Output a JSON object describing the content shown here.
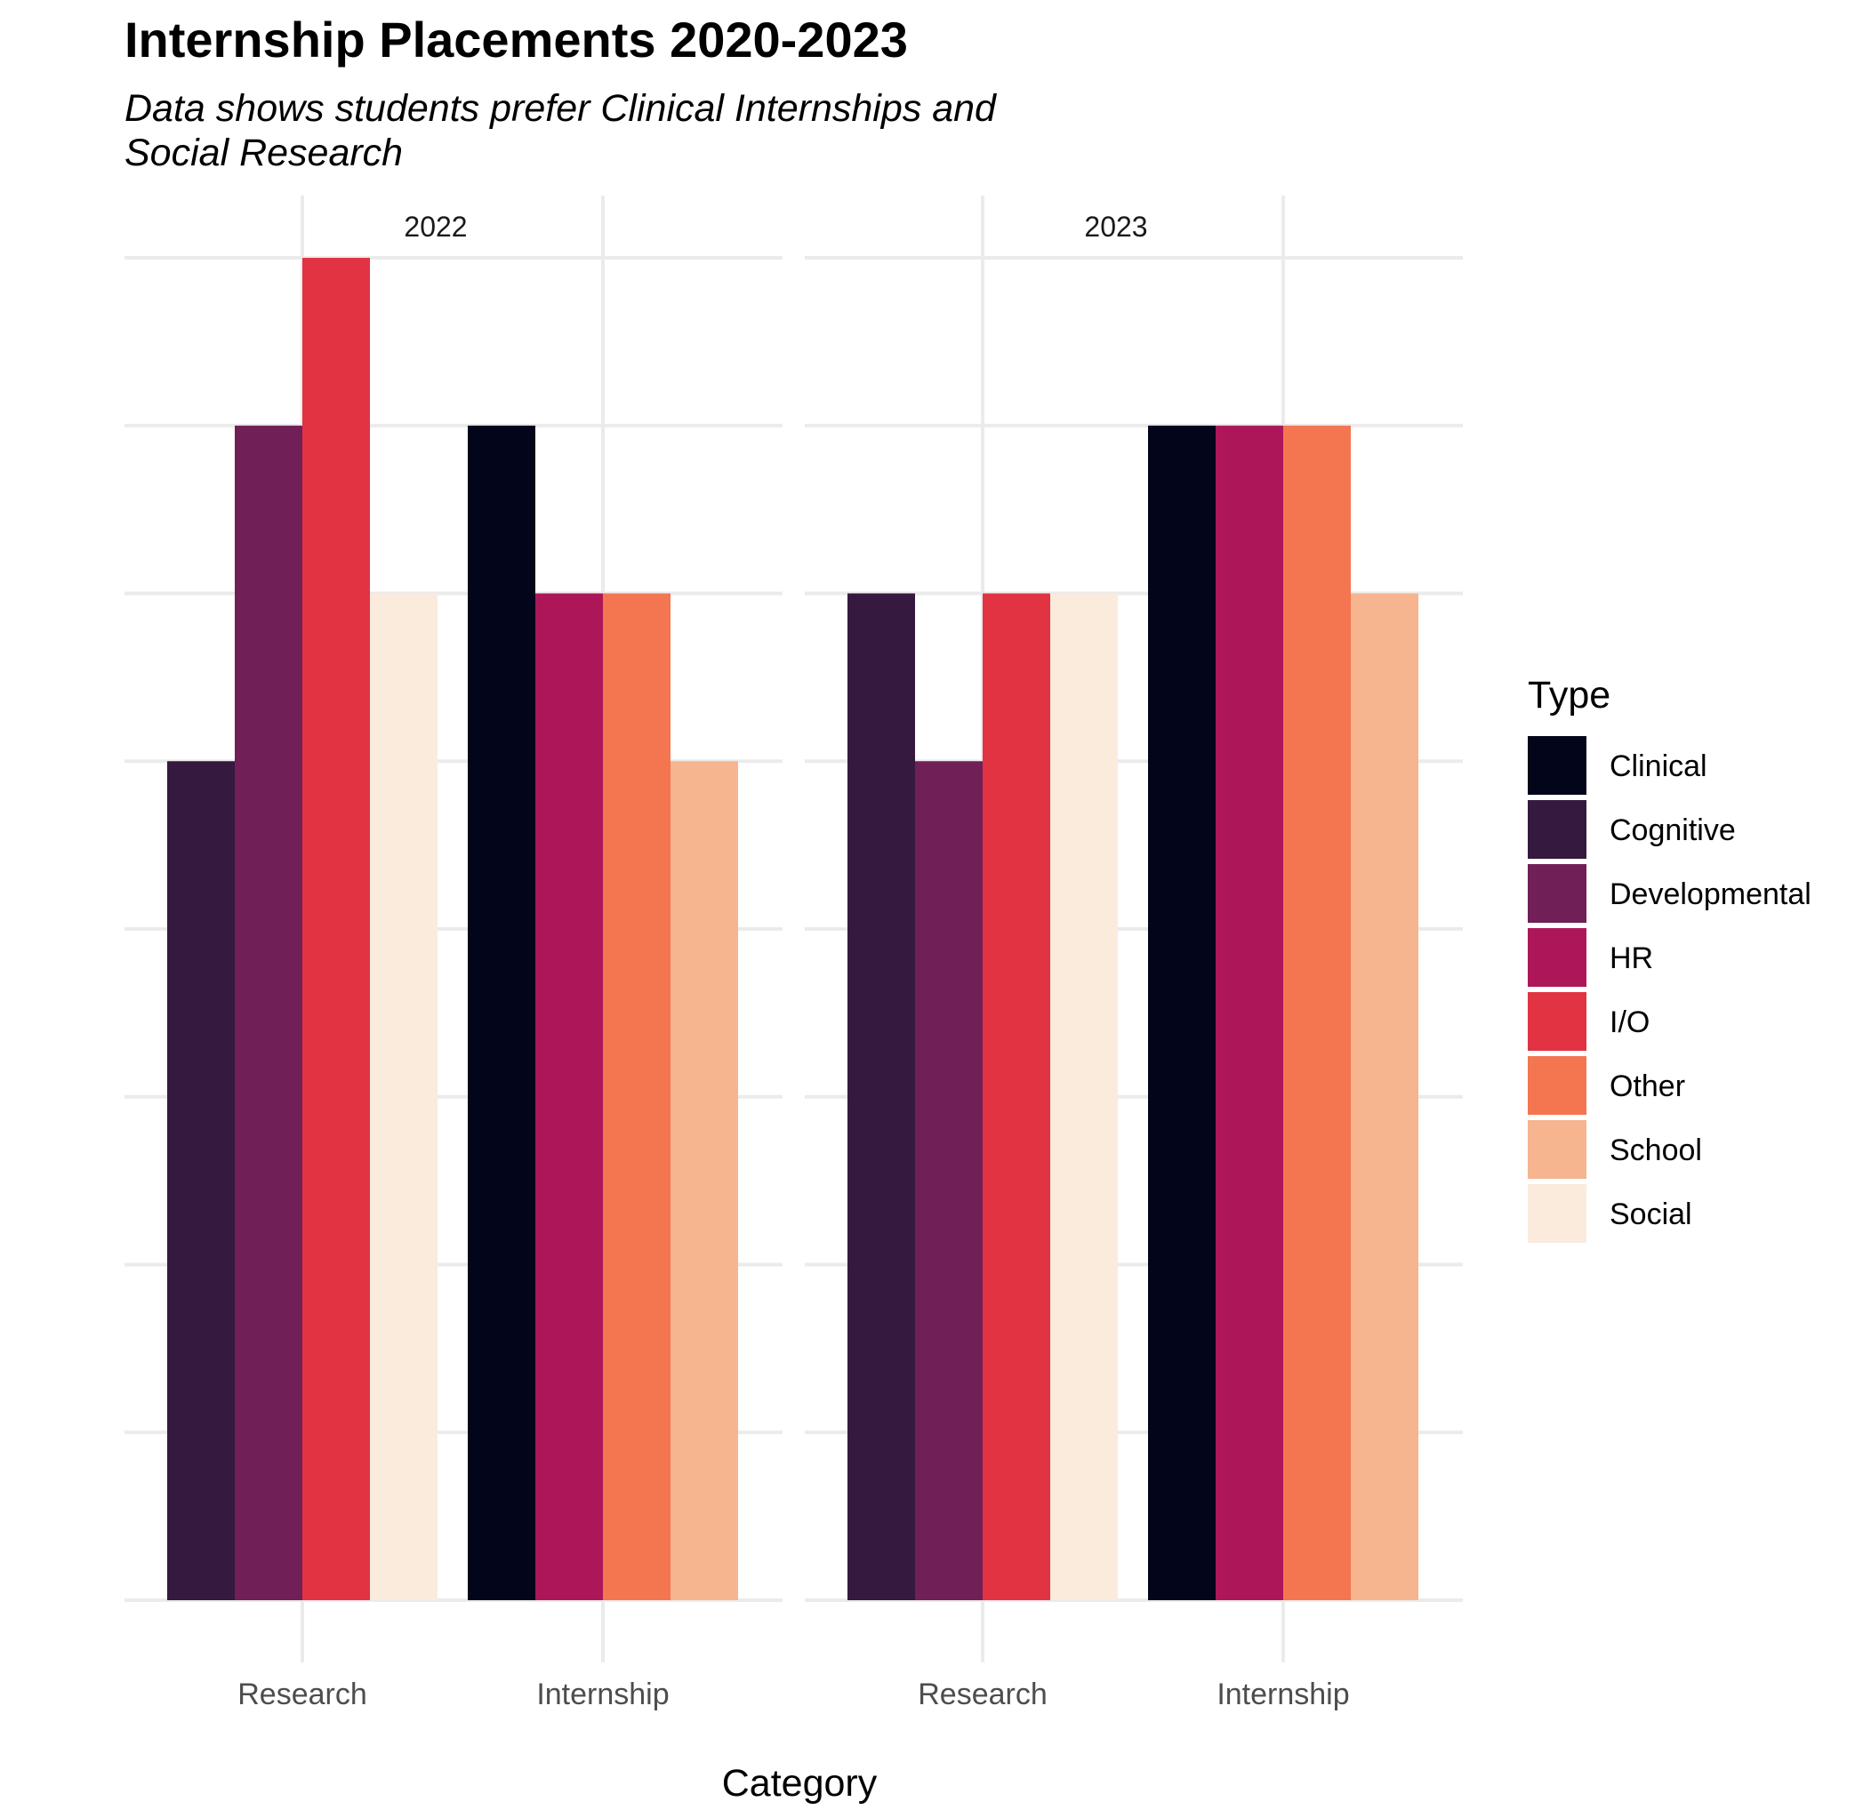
{
  "chart_data": {
    "type": "bar",
    "title": "Internship Placements 2020-2023",
    "subtitle_lines": [
      "Data shows students prefer Clinical Internships and",
      "Social Research"
    ],
    "xlabel": "Category",
    "ylabel": "",
    "ylim": [
      0,
      8
    ],
    "grid": true,
    "legend": {
      "title": "Type",
      "position": "right"
    },
    "categories": [
      "Research",
      "Internship"
    ],
    "types": [
      {
        "name": "Clinical",
        "color": "#03051A"
      },
      {
        "name": "Cognitive",
        "color": "#36193E"
      },
      {
        "name": "Developmental",
        "color": "#701F57"
      },
      {
        "name": "HR",
        "color": "#AD1759"
      },
      {
        "name": "I/O",
        "color": "#E13342"
      },
      {
        "name": "Other",
        "color": "#F37651"
      },
      {
        "name": "School",
        "color": "#F6B48F"
      },
      {
        "name": "Social",
        "color": "#FAEBDD"
      }
    ],
    "panels": [
      {
        "label": "2022",
        "groups": [
          {
            "category": "Research",
            "bars": [
              {
                "type": "Cognitive",
                "value": 5
              },
              {
                "type": "Developmental",
                "value": 7
              },
              {
                "type": "I/O",
                "value": 8
              },
              {
                "type": "Social",
                "value": 6
              }
            ]
          },
          {
            "category": "Internship",
            "bars": [
              {
                "type": "Clinical",
                "value": 7
              },
              {
                "type": "HR",
                "value": 6
              },
              {
                "type": "Other",
                "value": 6
              },
              {
                "type": "School",
                "value": 5
              }
            ]
          }
        ]
      },
      {
        "label": "2023",
        "groups": [
          {
            "category": "Research",
            "bars": [
              {
                "type": "Cognitive",
                "value": 6
              },
              {
                "type": "Developmental",
                "value": 5
              },
              {
                "type": "I/O",
                "value": 6
              },
              {
                "type": "Social",
                "value": 6
              }
            ]
          },
          {
            "category": "Internship",
            "bars": [
              {
                "type": "Clinical",
                "value": 7
              },
              {
                "type": "HR",
                "value": 7
              },
              {
                "type": "Other",
                "value": 7
              },
              {
                "type": "School",
                "value": 6
              }
            ]
          }
        ]
      }
    ]
  }
}
